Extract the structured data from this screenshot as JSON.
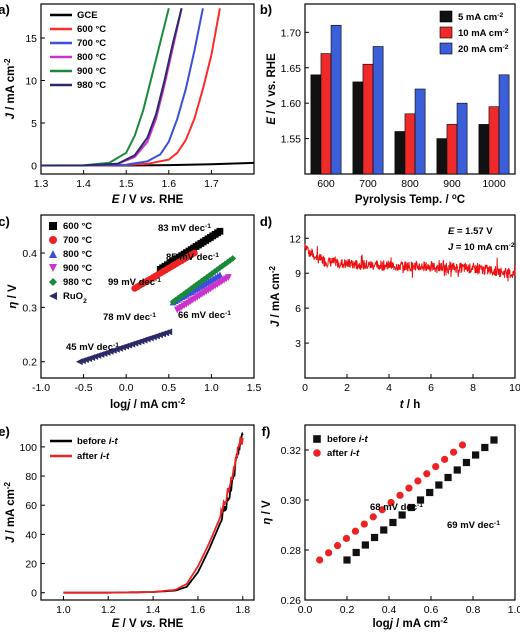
{
  "chart_data": [
    {
      "panel": "a)",
      "type": "line",
      "xlabel": "E / V vs. RHE",
      "ylabel": "J / mA cm-2",
      "xlim": [
        1.3,
        1.8
      ],
      "ylim": [
        -1,
        19
      ],
      "xticks": [
        "1.3",
        "1.4",
        "1.5",
        "1.6",
        "1.7"
      ],
      "yticks": [
        "0",
        "5",
        "10",
        "15"
      ],
      "legend_position": "top-left",
      "series": [
        {
          "name": "GCE",
          "color": "#000000",
          "x": [
            1.3,
            1.4,
            1.5,
            1.6,
            1.7,
            1.8
          ],
          "y": [
            0,
            0,
            0,
            0.05,
            0.15,
            0.3
          ]
        },
        {
          "name": "600 °C",
          "color": "#ff2a2a",
          "x": [
            1.3,
            1.4,
            1.5,
            1.55,
            1.6,
            1.62,
            1.64,
            1.66,
            1.68,
            1.7,
            1.72
          ],
          "y": [
            0,
            0,
            0.05,
            0.2,
            0.7,
            1.5,
            3.0,
            5.5,
            9.0,
            13.0,
            18.5
          ]
        },
        {
          "name": "700 °C",
          "color": "#3b4fd8",
          "x": [
            1.3,
            1.4,
            1.5,
            1.55,
            1.58,
            1.6,
            1.62,
            1.64,
            1.66,
            1.68
          ],
          "y": [
            0,
            0,
            0.1,
            0.5,
            1.3,
            2.8,
            5.5,
            9.0,
            13.5,
            18.5
          ]
        },
        {
          "name": "800 °C",
          "color": "#cc33cc",
          "x": [
            1.3,
            1.4,
            1.48,
            1.52,
            1.55,
            1.57,
            1.59,
            1.61,
            1.63
          ],
          "y": [
            0,
            0,
            0.2,
            1.0,
            2.8,
            5.5,
            9.5,
            14.0,
            18.5
          ]
        },
        {
          "name": "900 °C",
          "color": "#1a8a3a",
          "x": [
            1.3,
            1.4,
            1.46,
            1.5,
            1.52,
            1.54,
            1.56,
            1.58,
            1.6
          ],
          "y": [
            0,
            0.02,
            0.3,
            1.5,
            3.5,
            6.5,
            10.5,
            14.5,
            18.5
          ]
        },
        {
          "name": "980 °C",
          "color": "#2a2a6a",
          "x": [
            1.3,
            1.4,
            1.48,
            1.52,
            1.55,
            1.57,
            1.59,
            1.61,
            1.63
          ],
          "y": [
            0,
            0,
            0.2,
            1.2,
            3.3,
            6.0,
            10.0,
            14.5,
            18.5
          ]
        }
      ]
    },
    {
      "panel": "b)",
      "type": "bar",
      "xlabel": "Pyrolysis Temp. / °C",
      "ylabel": "E / V vs. RHE",
      "ylim": [
        1.5,
        1.74
      ],
      "yticks": [
        "1.55",
        "1.60",
        "1.65",
        "1.70"
      ],
      "categories": [
        "600",
        "700",
        "800",
        "900",
        "1000"
      ],
      "legend_position": "top-right",
      "series": [
        {
          "name": "5 mA cm-2",
          "color": "#111111",
          "values": [
            1.64,
            1.63,
            1.56,
            1.55,
            1.57
          ]
        },
        {
          "name": "10 mA cm-2",
          "color": "#ee2a2a",
          "values": [
            1.67,
            1.655,
            1.585,
            1.57,
            1.595
          ]
        },
        {
          "name": "20 mA cm-2",
          "color": "#3b5fd8",
          "values": [
            1.71,
            1.68,
            1.62,
            1.6,
            1.64
          ]
        }
      ]
    },
    {
      "panel": "c)",
      "type": "scatter",
      "xlabel": "logj / mA cm-2",
      "ylabel": "η / V",
      "xlim": [
        -1.0,
        1.5
      ],
      "ylim": [
        0.17,
        0.47
      ],
      "xticks": [
        "-1.0",
        "-0.5",
        "0.0",
        "0.5",
        "1.0",
        "1.5"
      ],
      "yticks": [
        "0.2",
        "0.3",
        "0.4"
      ],
      "legend_position": "left",
      "series": [
        {
          "name": "600 °C",
          "color": "#000000",
          "marker": "square",
          "x0": 0.4,
          "x1": 1.1,
          "y0": 0.37,
          "y1": 0.44,
          "n": 26
        },
        {
          "name": "700 °C",
          "color": "#ee2222",
          "marker": "circle",
          "x0": 0.1,
          "x1": 0.8,
          "y0": 0.335,
          "y1": 0.4,
          "n": 24
        },
        {
          "name": "800 °C",
          "color": "#3b4fd8",
          "marker": "triangle-up",
          "x0": 0.55,
          "x1": 1.1,
          "y0": 0.31,
          "y1": 0.36,
          "n": 22
        },
        {
          "name": "900 °C",
          "color": "#cc33cc",
          "marker": "triangle-down",
          "x0": 0.6,
          "x1": 1.2,
          "y0": 0.295,
          "y1": 0.355,
          "n": 24
        },
        {
          "name": "980 °C",
          "color": "#1a8a3a",
          "marker": "diamond",
          "x0": 0.55,
          "x1": 1.25,
          "y0": 0.31,
          "y1": 0.39,
          "n": 24
        },
        {
          "name": "RuO2",
          "color": "#2a2a6a",
          "marker": "triangle-left",
          "x0": -0.55,
          "x1": 0.5,
          "y0": 0.2,
          "y1": 0.255,
          "n": 30
        }
      ],
      "annotations": [
        "83 mV dec-1",
        "85 mV dec-1",
        "99 mV dec-1",
        "78 mV dec-1",
        "66 mV dec-1",
        "45 mV dec-1"
      ]
    },
    {
      "panel": "d)",
      "type": "line",
      "xlabel": "t / h",
      "ylabel": "J / mA cm-2",
      "xlim": [
        0,
        10
      ],
      "ylim": [
        0,
        14
      ],
      "xticks": [
        "0",
        "2",
        "4",
        "6",
        "8",
        "10"
      ],
      "yticks": [
        "3",
        "6",
        "9",
        "12"
      ],
      "annotations": [
        "E = 1.57 V",
        "J = 10 mA cm-2"
      ],
      "series": [
        {
          "name": "",
          "color": "#ee1111",
          "x": [
            0,
            0.1,
            0.3,
            0.6,
            1.0,
            2,
            3,
            4,
            5,
            6,
            7,
            8,
            9,
            10
          ],
          "y": [
            11.5,
            11.2,
            10.7,
            10.3,
            10.0,
            9.8,
            9.7,
            9.65,
            9.6,
            9.55,
            9.5,
            9.4,
            9.2,
            8.9
          ]
        }
      ]
    },
    {
      "panel": "e)",
      "type": "line",
      "xlabel": "E / V vs. RHE",
      "ylabel": "J / mA cm-2",
      "xlim": [
        0.9,
        1.85
      ],
      "ylim": [
        -5,
        115
      ],
      "xticks": [
        "1.0",
        "1.2",
        "1.4",
        "1.6",
        "1.8"
      ],
      "yticks": [
        "0",
        "20",
        "40",
        "60",
        "80",
        "100"
      ],
      "legend_position": "top-left",
      "series": [
        {
          "name": "before i-t",
          "color": "#000000",
          "x": [
            1.0,
            1.2,
            1.4,
            1.5,
            1.55,
            1.6,
            1.65,
            1.7,
            1.73,
            1.76,
            1.78,
            1.8
          ],
          "y": [
            0,
            0,
            0.5,
            1.5,
            4,
            14,
            30,
            48,
            62,
            80,
            98,
            108
          ]
        },
        {
          "name": "after i-t",
          "color": "#ee2222",
          "x": [
            1.0,
            1.2,
            1.4,
            1.5,
            1.55,
            1.6,
            1.65,
            1.7,
            1.73,
            1.76,
            1.78,
            1.8
          ],
          "y": [
            0,
            0,
            0.5,
            2,
            6,
            18,
            34,
            52,
            66,
            84,
            100,
            106
          ]
        }
      ]
    },
    {
      "panel": "f)",
      "type": "scatter",
      "xlabel": "logj / mA cm-2",
      "ylabel": "η / V",
      "xlim": [
        0.0,
        1.0
      ],
      "ylim": [
        0.26,
        0.33
      ],
      "xticks": [
        "0.0",
        "0.2",
        "0.4",
        "0.6",
        "0.8",
        "1.0"
      ],
      "yticks": [
        "0.26",
        "0.28",
        "0.30",
        "0.32"
      ],
      "legend_position": "top-left",
      "series": [
        {
          "name": "before i-t",
          "color": "#111111",
          "marker": "square",
          "x0": 0.2,
          "x1": 0.9,
          "y0": 0.276,
          "y1": 0.324,
          "n": 17
        },
        {
          "name": "after i-t",
          "color": "#ee2222",
          "marker": "circle",
          "x0": 0.07,
          "x1": 0.75,
          "y0": 0.276,
          "y1": 0.322,
          "n": 17
        }
      ],
      "annotations": [
        "68 mV dec-1",
        "69 mV dec-1"
      ]
    }
  ],
  "labels": {
    "a_yunit": "J / mA cm",
    "sup_m2": "-2",
    "sup_m1": "-1",
    "degC": "°C"
  }
}
